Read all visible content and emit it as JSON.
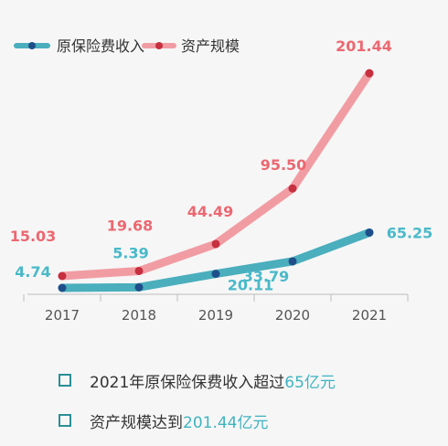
{
  "chart_data": {
    "type": "line",
    "title": "",
    "xlabel": "",
    "ylabel": "",
    "categories": [
      "2017",
      "2018",
      "2019",
      "2020",
      "2021"
    ],
    "legend_position": "top-left",
    "grid": false,
    "series": [
      {
        "name": "原保险费收入",
        "values": [
          4.74,
          5.39,
          20.11,
          33.79,
          65.25
        ],
        "labels": [
          "4.74",
          "5.39",
          "20.11",
          "33.79",
          "65.25"
        ],
        "color": "#4aaebd",
        "marker_color": "#1f4f8a",
        "label_color": "#49b9c9"
      },
      {
        "name": "资产规模",
        "values": [
          15.03,
          19.68,
          44.49,
          95.5,
          201.44
        ],
        "labels": [
          "15.03",
          "19.68",
          "44.49",
          "95.50",
          "201.44"
        ],
        "color": "#f19ca3",
        "marker_color": "#c6303f",
        "label_color": "#ec6871"
      }
    ]
  },
  "notes": [
    {
      "prefix": "2021年原保险保费收入超过",
      "accent": "65亿元"
    },
    {
      "prefix": "资产规模达到",
      "accent": "201.44亿元"
    }
  ]
}
